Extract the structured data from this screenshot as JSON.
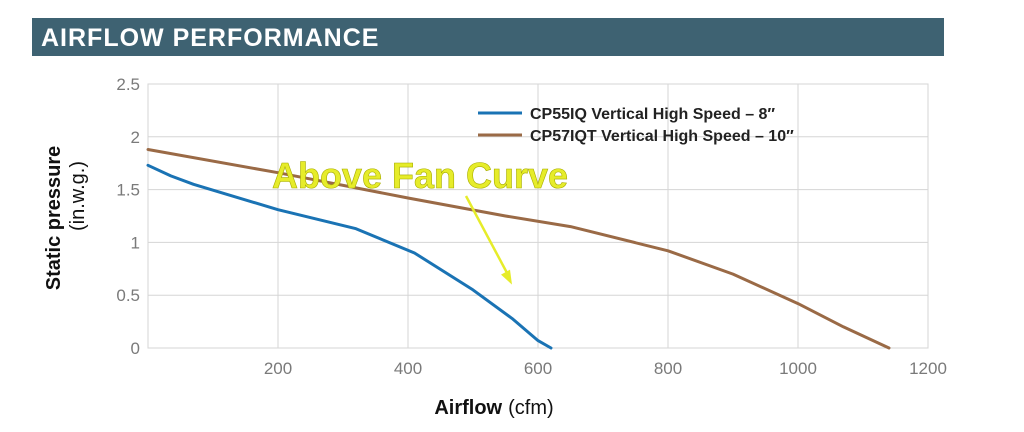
{
  "header": {
    "title": "AIRFLOW PERFORMANCE"
  },
  "chart_data": {
    "type": "line",
    "title": "AIRFLOW PERFORMANCE",
    "xlabel": "Airflow",
    "xlabel_unit": "(cfm)",
    "ylabel": "Static pressure",
    "ylabel_unit": "(in.w.g.)",
    "xlim": [
      0,
      1200
    ],
    "ylim": [
      0,
      2.5
    ],
    "x_ticks": [
      "200",
      "400",
      "600",
      "800",
      "1000",
      "1200"
    ],
    "y_ticks": [
      "0",
      "0.5",
      "1",
      "1.5",
      "2",
      "2.5"
    ],
    "grid": true,
    "legend_position": "top-right",
    "series": [
      {
        "name": "CP55IQ Vertical High Speed – 8″",
        "color": "#1a73b4",
        "points": [
          [
            0,
            1.73
          ],
          [
            35,
            1.63
          ],
          [
            70,
            1.55
          ],
          [
            200,
            1.31
          ],
          [
            320,
            1.13
          ],
          [
            410,
            0.9
          ],
          [
            500,
            0.55
          ],
          [
            560,
            0.28
          ],
          [
            600,
            0.07
          ],
          [
            620,
            0
          ]
        ]
      },
      {
        "name": "CP57IQT Vertical High Speed – 10″",
        "color": "#9a6a46",
        "points": [
          [
            0,
            1.88
          ],
          [
            200,
            1.66
          ],
          [
            400,
            1.42
          ],
          [
            550,
            1.25
          ],
          [
            650,
            1.15
          ],
          [
            800,
            0.92
          ],
          [
            900,
            0.7
          ],
          [
            1000,
            0.42
          ],
          [
            1070,
            0.2
          ],
          [
            1140,
            0
          ]
        ]
      }
    ],
    "annotation": {
      "text": "Above Fan Curve",
      "color": "#e6ec2a",
      "arrow_to": [
        560,
        0.6
      ]
    }
  }
}
